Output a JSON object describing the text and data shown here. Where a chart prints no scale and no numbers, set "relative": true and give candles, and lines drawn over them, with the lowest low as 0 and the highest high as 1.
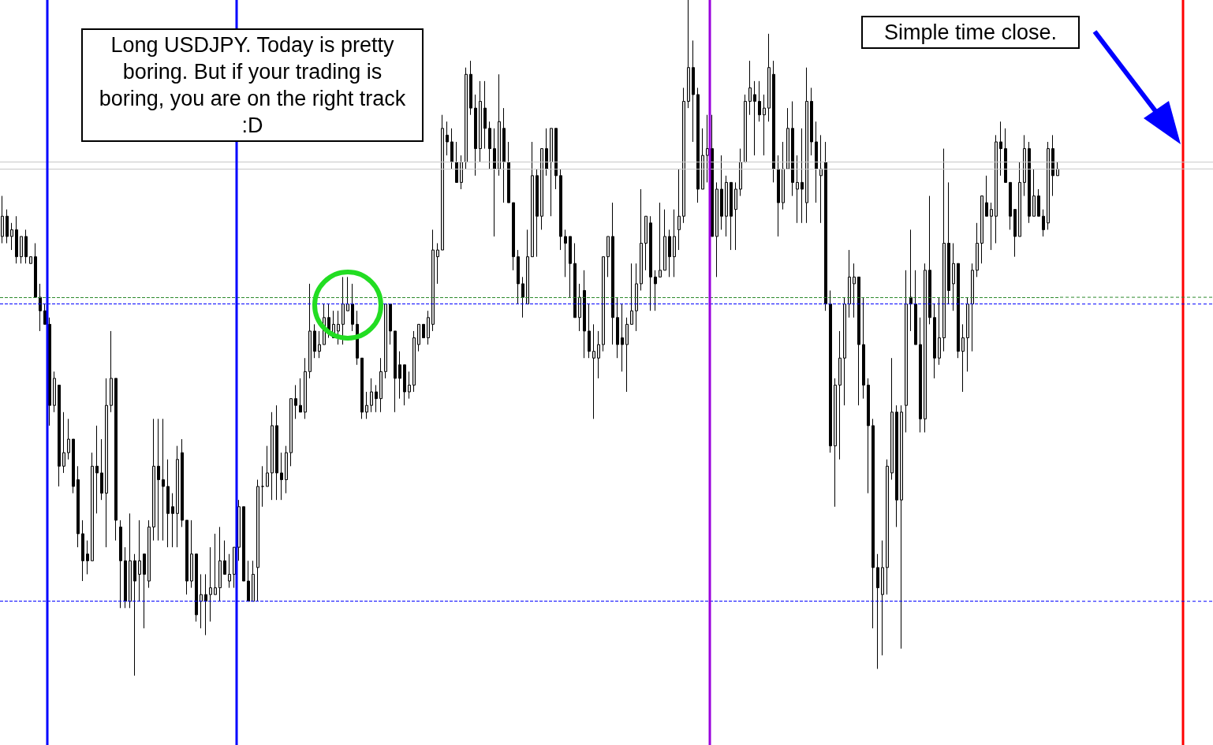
{
  "chart_data": {
    "type": "candlestick",
    "relative": true,
    "annotations": [
      "Long USDJPY. Today is pretty boring. But if your trading is boring, you are on the right track :D",
      "Simple time close."
    ],
    "ref_lines": [
      {
        "axis": "y",
        "value": 0.76,
        "color": "#c8c8c8",
        "line_style": "solid"
      },
      {
        "axis": "y",
        "value": 0.75,
        "color": "#c8c8c8",
        "line_style": "solid"
      },
      {
        "axis": "y",
        "value": 0.56,
        "color": "#2e8b2e",
        "line_style": "dashed"
      },
      {
        "axis": "y",
        "value": 0.55,
        "color": "#0000ff",
        "line_style": "dashed"
      },
      {
        "axis": "y",
        "value": 0.11,
        "color": "#0000ff",
        "line_style": "dashed"
      }
    ],
    "categories": [
      null,
      null,
      null,
      null,
      null,
      null,
      null,
      null,
      null,
      null,
      null,
      null,
      null,
      null,
      null,
      null,
      null,
      null,
      null,
      null,
      null,
      null,
      null,
      null,
      null,
      null,
      null,
      null,
      null,
      null,
      null,
      null,
      null,
      null,
      null,
      null,
      null,
      null,
      null,
      null,
      null,
      null,
      null,
      null,
      null,
      null,
      null,
      null,
      null,
      null,
      null,
      null,
      null,
      null,
      null,
      null,
      null,
      null,
      null,
      null,
      null,
      null,
      null,
      null,
      null,
      null,
      null,
      null,
      null,
      null,
      null,
      null,
      null,
      null,
      null,
      null,
      null,
      null,
      null,
      null,
      null,
      null,
      null,
      null,
      null,
      null,
      null,
      null,
      null,
      null,
      null,
      null,
      null,
      null,
      null,
      null,
      null,
      null,
      null,
      null,
      null,
      null,
      null,
      null,
      null,
      null,
      null,
      null,
      null,
      null,
      null,
      null,
      null,
      null,
      null,
      null,
      null,
      null,
      null,
      null,
      null,
      null,
      null,
      null,
      null,
      null,
      null,
      null,
      null,
      null,
      null,
      null,
      null,
      null,
      null,
      null,
      null,
      null,
      null,
      null,
      null,
      null,
      null,
      null,
      null,
      null,
      null,
      null,
      null,
      null,
      null,
      null,
      null,
      null,
      null,
      null,
      null,
      null,
      null,
      null,
      null,
      null,
      null,
      null,
      null,
      null,
      null,
      null,
      null,
      null,
      null,
      null,
      null,
      null,
      null,
      null,
      null,
      null,
      null,
      null,
      null,
      null,
      null,
      null,
      null,
      null,
      null,
      null,
      null,
      null,
      null,
      null,
      null,
      null,
      null,
      null,
      null,
      null,
      null,
      null,
      null,
      null,
      null,
      null,
      null,
      null,
      null,
      null,
      null,
      null,
      null,
      null,
      null,
      null,
      null,
      null,
      null,
      null,
      null,
      null,
      null,
      null,
      null,
      null
    ],
    "ohlc": [
      [
        0.65,
        0.71,
        0.64,
        0.68
      ],
      [
        0.68,
        0.69,
        0.64,
        0.65
      ],
      [
        0.65,
        0.67,
        0.63,
        0.66
      ],
      [
        0.66,
        0.68,
        0.61,
        0.62
      ],
      [
        0.62,
        0.65,
        0.61,
        0.65
      ],
      [
        0.65,
        0.66,
        0.61,
        0.62
      ],
      [
        0.61,
        0.62,
        0.61,
        0.62
      ],
      [
        0.62,
        0.64,
        0.56,
        0.56
      ],
      [
        0.56,
        0.58,
        0.51,
        0.54
      ],
      [
        0.54,
        0.55,
        0.52,
        0.52
      ],
      [
        0.52,
        0.53,
        0.37,
        0.4
      ],
      [
        0.4,
        0.45,
        0.39,
        0.44
      ],
      [
        0.43,
        0.43,
        0.28,
        0.31
      ],
      [
        0.31,
        0.39,
        0.3,
        0.33
      ],
      [
        0.33,
        0.38,
        0.32,
        0.35
      ],
      [
        0.35,
        0.35,
        0.27,
        0.28
      ],
      [
        0.29,
        0.31,
        0.19,
        0.21
      ],
      [
        0.21,
        0.23,
        0.14,
        0.17
      ],
      [
        0.18,
        0.2,
        0.15,
        0.17
      ],
      [
        0.17,
        0.33,
        0.17,
        0.31
      ],
      [
        0.31,
        0.37,
        0.24,
        0.3
      ],
      [
        0.3,
        0.35,
        0.26,
        0.27
      ],
      [
        0.27,
        0.44,
        0.19,
        0.4
      ],
      [
        0.4,
        0.51,
        0.39,
        0.44
      ],
      [
        0.44,
        0.44,
        0.2,
        0.23
      ],
      [
        0.22,
        0.23,
        0.1,
        0.17
      ],
      [
        0.17,
        0.19,
        0.1,
        0.11
      ],
      [
        0.11,
        0.24,
        0.1,
        0.17
      ],
      [
        0.17,
        0.18,
        0,
        0.14
      ],
      [
        0.15,
        0.23,
        0.11,
        0.17
      ],
      [
        0.18,
        0.18,
        0.07,
        0.15
      ],
      [
        0.14,
        0.23,
        0.13,
        0.22
      ],
      [
        0.22,
        0.38,
        0.2,
        0.31
      ],
      [
        0.31,
        0.38,
        0.2,
        0.29
      ],
      [
        0.29,
        0.38,
        0.2,
        0.28
      ],
      [
        0.28,
        0.32,
        0.19,
        0.24
      ],
      [
        0.25,
        0.27,
        0.19,
        0.24
      ],
      [
        0.24,
        0.34,
        0.19,
        0.32
      ],
      [
        0.33,
        0.35,
        0.22,
        0.23
      ],
      [
        0.23,
        0.23,
        0.12,
        0.14
      ],
      [
        0.14,
        0.23,
        0.13,
        0.18
      ],
      [
        0.18,
        0.18,
        0.08,
        0.09
      ],
      [
        0.11,
        0.15,
        0.07,
        0.12
      ],
      [
        0.12,
        0.15,
        0.06,
        0.11
      ],
      [
        0.12,
        0.19,
        0.08,
        0.13
      ],
      [
        0.12,
        0.21,
        0.12,
        0.13
      ],
      [
        0.13,
        0.22,
        0.11,
        0.17
      ],
      [
        0.17,
        0.2,
        0.15,
        0.15
      ],
      [
        0.14,
        0.18,
        0.13,
        0.15
      ],
      [
        0.15,
        0.19,
        0.13,
        0.19
      ],
      [
        0.19,
        0.26,
        0.17,
        0.25
      ],
      [
        0.25,
        0.25,
        0.14,
        0.14
      ],
      [
        0.14,
        0.17,
        0.11,
        0.11
      ],
      [
        0.11,
        0.17,
        0.11,
        0.15
      ],
      [
        0.16,
        0.29,
        0.11,
        0.28
      ],
      [
        0.28,
        0.31,
        0.25,
        0.28
      ],
      [
        0.28,
        0.34,
        0.28,
        0.3
      ],
      [
        0.3,
        0.39,
        0.26,
        0.37
      ],
      [
        0.37,
        0.4,
        0.26,
        0.3
      ],
      [
        0.3,
        0.33,
        0.26,
        0.29
      ],
      [
        0.29,
        0.34,
        0.27,
        0.33
      ],
      [
        0.33,
        0.41,
        0.31,
        0.41
      ],
      [
        0.41,
        0.43,
        0.38,
        0.4
      ],
      [
        0.4,
        0.44,
        0.39,
        0.39
      ],
      [
        0.39,
        0.47,
        0.38,
        0.45
      ],
      [
        0.45,
        0.58,
        0.44,
        0.51
      ],
      [
        0.51,
        0.52,
        0.47,
        0.48
      ],
      [
        0.48,
        0.51,
        0.47,
        0.49
      ],
      [
        0.49,
        0.55,
        0.49,
        0.53
      ],
      [
        0.53,
        0.55,
        0.5,
        0.51
      ],
      [
        0.5,
        0.54,
        0.5,
        0.52
      ],
      [
        0.51,
        0.54,
        0.49,
        0.52
      ],
      [
        0.52,
        0.59,
        0.49,
        0.55
      ],
      [
        0.54,
        0.59,
        0.54,
        0.55
      ],
      [
        0.55,
        0.58,
        0.51,
        0.52
      ],
      [
        0.52,
        0.54,
        0.46,
        0.47
      ],
      [
        0.47,
        0.47,
        0.38,
        0.39
      ],
      [
        0.39,
        0.42,
        0.38,
        0.4
      ],
      [
        0.4,
        0.44,
        0.39,
        0.42
      ],
      [
        0.42,
        0.43,
        0.39,
        0.41
      ],
      [
        0.41,
        0.47,
        0.39,
        0.45
      ],
      [
        0.45,
        0.55,
        0.44,
        0.55
      ],
      [
        0.55,
        0.55,
        0.49,
        0.51
      ],
      [
        0.51,
        0.51,
        0.39,
        0.44
      ],
      [
        0.46,
        0.48,
        0.41,
        0.44
      ],
      [
        0.46,
        0.46,
        0.4,
        0.42
      ],
      [
        0.42,
        0.45,
        0.41,
        0.43
      ],
      [
        0.43,
        0.51,
        0.42,
        0.5
      ],
      [
        0.49,
        0.52,
        0.48,
        0.52
      ],
      [
        0.52,
        0.52,
        0.5,
        0.5
      ],
      [
        0.5,
        0.54,
        0.49,
        0.53
      ],
      [
        0.52,
        0.66,
        0.51,
        0.63
      ],
      [
        0.62,
        0.64,
        0.58,
        0.63
      ],
      [
        0.63,
        0.83,
        0.63,
        0.81
      ],
      [
        0.8,
        0.82,
        0.77,
        0.79
      ],
      [
        0.79,
        0.81,
        0.75,
        0.76
      ],
      [
        0.76,
        0.79,
        0.73,
        0.73
      ],
      [
        0.73,
        0.77,
        0.72,
        0.76
      ],
      [
        0.76,
        0.9,
        0.75,
        0.89
      ],
      [
        0.89,
        0.91,
        0.83,
        0.84
      ],
      [
        0.84,
        0.86,
        0.74,
        0.78
      ],
      [
        0.78,
        0.88,
        0.76,
        0.85
      ],
      [
        0.84,
        0.88,
        0.78,
        0.81
      ],
      [
        0.81,
        0.82,
        0.75,
        0.78
      ],
      [
        0.78,
        0.81,
        0.65,
        0.75
      ],
      [
        0.75,
        0.89,
        0.74,
        0.82
      ],
      [
        0.81,
        0.84,
        0.7,
        0.76
      ],
      [
        0.76,
        0.79,
        0.7,
        0.7
      ],
      [
        0.7,
        0.7,
        0.6,
        0.62
      ],
      [
        0.62,
        0.63,
        0.55,
        0.58
      ],
      [
        0.58,
        0.59,
        0.53,
        0.56
      ],
      [
        0.55,
        0.66,
        0.55,
        0.62
      ],
      [
        0.62,
        0.79,
        0.62,
        0.74
      ],
      [
        0.74,
        0.75,
        0.62,
        0.68
      ],
      [
        0.68,
        0.78,
        0.66,
        0.78
      ],
      [
        0.78,
        0.81,
        0.74,
        0.75
      ],
      [
        0.76,
        0.81,
        0.68,
        0.81
      ],
      [
        0.81,
        0.81,
        0.72,
        0.74
      ],
      [
        0.74,
        0.75,
        0.63,
        0.65
      ],
      [
        0.65,
        0.66,
        0.59,
        0.64
      ],
      [
        0.65,
        0.65,
        0.56,
        0.61
      ],
      [
        0.61,
        0.64,
        0.53,
        0.53
      ],
      [
        0.53,
        0.58,
        0.51,
        0.56
      ],
      [
        0.57,
        0.6,
        0.47,
        0.51
      ],
      [
        0.51,
        0.55,
        0.47,
        0.48
      ],
      [
        0.47,
        0.52,
        0.38,
        0.48
      ],
      [
        0.47,
        0.51,
        0.44,
        0.49
      ],
      [
        0.49,
        0.62,
        0.48,
        0.62
      ],
      [
        0.62,
        0.65,
        0.59,
        0.65
      ],
      [
        0.65,
        0.7,
        0.49,
        0.53
      ],
      [
        0.53,
        0.56,
        0.47,
        0.49
      ],
      [
        0.5,
        0.55,
        0.45,
        0.49
      ],
      [
        0.49,
        0.53,
        0.42,
        0.52
      ],
      [
        0.52,
        0.61,
        0.52,
        0.54
      ],
      [
        0.54,
        0.61,
        0.51,
        0.58
      ],
      [
        0.58,
        0.72,
        0.57,
        0.64
      ],
      [
        0.64,
        0.68,
        0.6,
        0.68
      ],
      [
        0.67,
        0.68,
        0.54,
        0.59
      ],
      [
        0.59,
        0.6,
        0.54,
        0.58
      ],
      [
        0.59,
        0.7,
        0.59,
        0.6
      ],
      [
        0.6,
        0.69,
        0.6,
        0.65
      ],
      [
        0.65,
        0.66,
        0.59,
        0.62
      ],
      [
        0.62,
        0.69,
        0.59,
        0.65
      ],
      [
        0.66,
        0.75,
        0.63,
        0.68
      ],
      [
        0.68,
        0.87,
        0.67,
        0.85
      ],
      [
        0.85,
        1,
        0.84,
        0.9
      ],
      [
        0.9,
        0.94,
        0.79,
        0.86
      ],
      [
        0.86,
        0.87,
        0.7,
        0.72
      ],
      [
        0.72,
        0.81,
        0.72,
        0.77
      ],
      [
        0.77,
        0.83,
        0.73,
        0.78
      ],
      [
        0.78,
        0.83,
        0.65,
        0.65
      ],
      [
        0.65,
        0.73,
        0.59,
        0.72
      ],
      [
        0.72,
        0.77,
        0.66,
        0.68
      ],
      [
        0.68,
        0.74,
        0.65,
        0.73
      ],
      [
        0.73,
        0.73,
        0.63,
        0.68
      ],
      [
        0.69,
        0.73,
        0.63,
        0.72
      ],
      [
        0.72,
        0.78,
        0.71,
        0.76
      ],
      [
        0.76,
        0.86,
        0.76,
        0.85
      ],
      [
        0.85,
        0.91,
        0.83,
        0.87
      ],
      [
        0.86,
        0.88,
        0.77,
        0.85
      ],
      [
        0.85,
        0.88,
        0.82,
        0.83
      ],
      [
        0.83,
        0.86,
        0.77,
        0.84
      ],
      [
        0.84,
        0.95,
        0.82,
        0.9
      ],
      [
        0.89,
        0.91,
        0.73,
        0.75
      ],
      [
        0.75,
        0.77,
        0.65,
        0.7
      ],
      [
        0.7,
        0.79,
        0.69,
        0.75
      ],
      [
        0.75,
        0.84,
        0.75,
        0.81
      ],
      [
        0.81,
        0.85,
        0.71,
        0.73
      ],
      [
        0.72,
        0.77,
        0.67,
        0.73
      ],
      [
        0.73,
        0.81,
        0.67,
        0.72
      ],
      [
        0.7,
        0.9,
        0.67,
        0.85
      ],
      [
        0.85,
        0.87,
        0.77,
        0.79
      ],
      [
        0.79,
        0.82,
        0.7,
        0.75
      ],
      [
        0.74,
        0.8,
        0.67,
        0.75
      ],
      [
        0.76,
        0.79,
        0.54,
        0.55
      ],
      [
        0.55,
        0.57,
        0.33,
        0.34
      ],
      [
        0.34,
        0.44,
        0.25,
        0.43
      ],
      [
        0.43,
        0.51,
        0.32,
        0.47
      ],
      [
        0.47,
        0.56,
        0.4,
        0.55
      ],
      [
        0.55,
        0.63,
        0.53,
        0.59
      ],
      [
        0.58,
        0.61,
        0.53,
        0.59
      ],
      [
        0.59,
        0.59,
        0.4,
        0.49
      ],
      [
        0.49,
        0.56,
        0.41,
        0.43
      ],
      [
        0.43,
        0.44,
        0.27,
        0.37
      ],
      [
        0.37,
        0.38,
        0.07,
        0.16
      ],
      [
        0.16,
        0.18,
        0.01,
        0.13
      ],
      [
        0.12,
        0.2,
        0.03,
        0.16
      ],
      [
        0.16,
        0.32,
        0.12,
        0.31
      ],
      [
        0.3,
        0.47,
        0.29,
        0.39
      ],
      [
        0.39,
        0.4,
        0.22,
        0.26
      ],
      [
        0.26,
        0.4,
        0.04,
        0.39
      ],
      [
        0.4,
        0.6,
        0.36,
        0.55
      ],
      [
        0.56,
        0.66,
        0.51,
        0.55
      ],
      [
        0.55,
        0.6,
        0.49,
        0.49
      ],
      [
        0.49,
        0.53,
        0.36,
        0.38
      ],
      [
        0.38,
        0.61,
        0.36,
        0.6
      ],
      [
        0.6,
        0.71,
        0.52,
        0.53
      ],
      [
        0.53,
        0.55,
        0.44,
        0.47
      ],
      [
        0.47,
        0.56,
        0.46,
        0.5
      ],
      [
        0.5,
        0.78,
        0.48,
        0.64
      ],
      [
        0.64,
        0.73,
        0.55,
        0.57
      ],
      [
        0.58,
        0.64,
        0.54,
        0.61
      ],
      [
        0.61,
        0.61,
        0.47,
        0.48
      ],
      [
        0.48,
        0.52,
        0.42,
        0.5
      ],
      [
        0.5,
        0.56,
        0.45,
        0.55
      ],
      [
        0.55,
        0.61,
        0.48,
        0.6
      ],
      [
        0.6,
        0.67,
        0.59,
        0.64
      ],
      [
        0.64,
        0.71,
        0.61,
        0.71
      ],
      [
        0.7,
        0.74,
        0.68,
        0.68
      ],
      [
        0.68,
        0.7,
        0.63,
        0.69
      ],
      [
        0.68,
        0.8,
        0.64,
        0.79
      ],
      [
        0.79,
        0.82,
        0.74,
        0.78
      ],
      [
        0.78,
        0.81,
        0.73,
        0.73
      ],
      [
        0.73,
        0.73,
        0.66,
        0.68
      ],
      [
        0.69,
        0.69,
        0.62,
        0.65
      ],
      [
        0.65,
        0.76,
        0.65,
        0.73
      ],
      [
        0.73,
        0.8,
        0.71,
        0.78
      ],
      [
        0.78,
        0.79,
        0.67,
        0.68
      ],
      [
        0.68,
        0.75,
        0.68,
        0.71
      ],
      [
        0.71,
        0.72,
        0.68,
        0.68
      ],
      [
        0.68,
        0.69,
        0.65,
        0.66
      ],
      [
        0.67,
        0.79,
        0.66,
        0.78
      ],
      [
        0.78,
        0.8,
        0.71,
        0.74
      ],
      [
        0.74,
        0.76,
        0.74,
        0.75
      ]
    ]
  }
}
